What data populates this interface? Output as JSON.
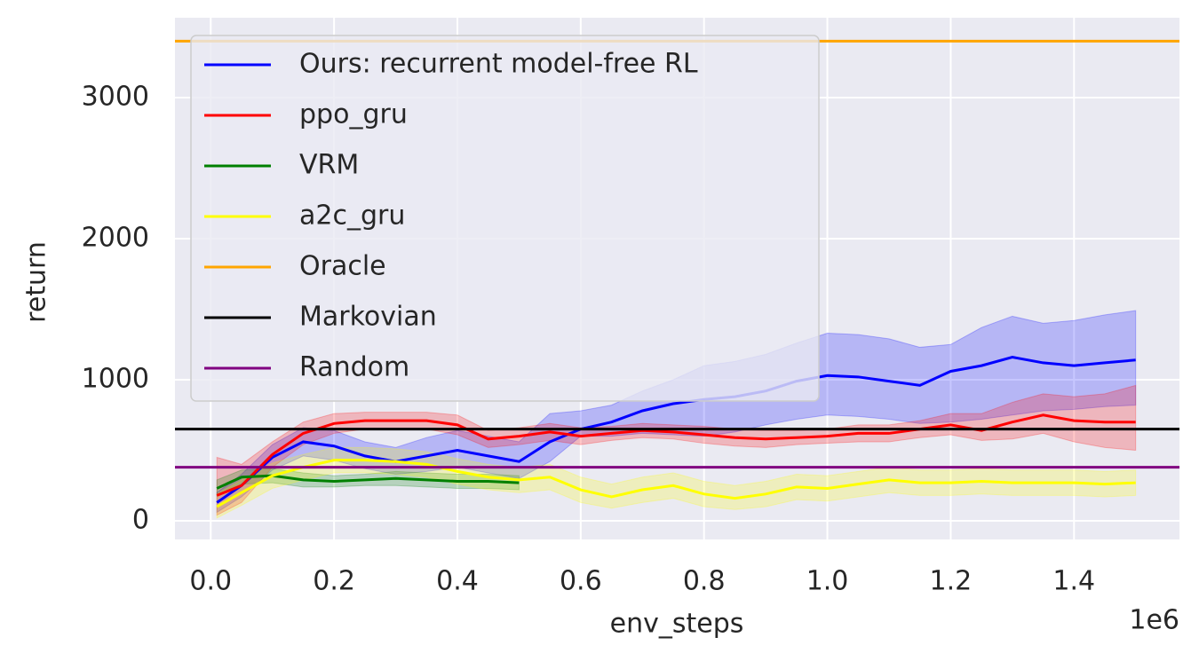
{
  "chart_data": {
    "type": "line",
    "x_label": "env_steps",
    "y_label": "return",
    "x_scale_label": "1e6",
    "xlim": [
      -0.058,
      1.571
    ],
    "ylim": [
      -132,
      3566
    ],
    "xticks": [
      {
        "value": 0,
        "label": "0.0"
      },
      {
        "value": 0.2,
        "label": "0.2"
      },
      {
        "value": 0.4,
        "label": "0.4"
      },
      {
        "value": 0.6,
        "label": "0.6"
      },
      {
        "value": 0.8,
        "label": "0.8"
      },
      {
        "value": 1,
        "label": "1.0"
      },
      {
        "value": 1.2,
        "label": "1.2"
      },
      {
        "value": 1.4,
        "label": "1.4"
      }
    ],
    "yticks": [
      0,
      1000,
      2000,
      3000
    ],
    "grid": true,
    "legend": "upper left",
    "series": [
      {
        "name": "Ours: recurrent model-free RL",
        "color": "#0000ff",
        "x": [
          0.01,
          0.05,
          0.1,
          0.15,
          0.2,
          0.25,
          0.3,
          0.35,
          0.4,
          0.45,
          0.5,
          0.55,
          0.6,
          0.65,
          0.7,
          0.75,
          0.8,
          0.85,
          0.9,
          0.95,
          1.0,
          1.05,
          1.1,
          1.15,
          1.2,
          1.25,
          1.3,
          1.35,
          1.4,
          1.45,
          1.5
        ],
        "values": [
          130,
          250,
          450,
          560,
          530,
          460,
          420,
          460,
          500,
          460,
          420,
          560,
          650,
          700,
          780,
          830,
          860,
          880,
          920,
          990,
          1030,
          1020,
          990,
          960,
          1060,
          1100,
          1160,
          1120,
          1100,
          1120,
          1140
        ],
        "lower": [
          60,
          170,
          360,
          460,
          430,
          370,
          330,
          350,
          380,
          340,
          300,
          420,
          600,
          600,
          620,
          610,
          600,
          630,
          680,
          720,
          750,
          740,
          720,
          690,
          700,
          720,
          750,
          780,
          790,
          810,
          820
        ],
        "upper": [
          200,
          330,
          540,
          660,
          640,
          560,
          520,
          590,
          640,
          600,
          560,
          760,
          780,
          820,
          920,
          1000,
          1100,
          1130,
          1180,
          1260,
          1330,
          1320,
          1290,
          1230,
          1250,
          1370,
          1450,
          1400,
          1420,
          1460,
          1490
        ]
      },
      {
        "name": "ppo_gru",
        "color": "#ff0000",
        "x": [
          0.01,
          0.05,
          0.1,
          0.15,
          0.2,
          0.25,
          0.3,
          0.35,
          0.4,
          0.45,
          0.5,
          0.55,
          0.6,
          0.65,
          0.7,
          0.75,
          0.8,
          0.85,
          0.9,
          0.95,
          1.0,
          1.05,
          1.1,
          1.15,
          1.2,
          1.25,
          1.3,
          1.35,
          1.4,
          1.45,
          1.5
        ],
        "values": [
          180,
          250,
          470,
          620,
          690,
          710,
          710,
          710,
          680,
          580,
          600,
          630,
          600,
          620,
          640,
          630,
          610,
          590,
          580,
          590,
          600,
          620,
          620,
          650,
          680,
          640,
          700,
          750,
          710,
          700,
          700
        ],
        "lower": [
          40,
          130,
          380,
          540,
          620,
          650,
          650,
          650,
          610,
          520,
          540,
          570,
          540,
          570,
          590,
          580,
          550,
          530,
          520,
          540,
          550,
          560,
          560,
          590,
          610,
          570,
          580,
          620,
          560,
          520,
          500
        ],
        "upper": [
          450,
          400,
          560,
          700,
          760,
          770,
          770,
          770,
          750,
          640,
          660,
          690,
          660,
          670,
          690,
          680,
          670,
          650,
          640,
          640,
          650,
          680,
          680,
          710,
          760,
          760,
          840,
          900,
          880,
          900,
          960
        ]
      },
      {
        "name": "VRM",
        "color": "#008000",
        "x": [
          0.01,
          0.05,
          0.1,
          0.15,
          0.2,
          0.25,
          0.3,
          0.35,
          0.4,
          0.45,
          0.5
        ],
        "values": [
          230,
          310,
          320,
          290,
          280,
          290,
          300,
          290,
          280,
          280,
          270
        ],
        "lower": [
          180,
          260,
          270,
          240,
          240,
          250,
          250,
          240,
          230,
          230,
          220
        ],
        "upper": [
          290,
          360,
          370,
          340,
          320,
          330,
          350,
          340,
          330,
          330,
          320
        ]
      },
      {
        "name": "a2c_gru",
        "color": "#ffff00",
        "x": [
          0.01,
          0.05,
          0.1,
          0.15,
          0.2,
          0.25,
          0.3,
          0.35,
          0.4,
          0.45,
          0.5,
          0.55,
          0.6,
          0.65,
          0.7,
          0.75,
          0.8,
          0.85,
          0.9,
          0.95,
          1.0,
          1.05,
          1.1,
          1.15,
          1.2,
          1.25,
          1.3,
          1.35,
          1.4,
          1.45,
          1.5
        ],
        "values": [
          100,
          200,
          320,
          380,
          430,
          430,
          420,
          400,
          350,
          310,
          290,
          310,
          220,
          170,
          220,
          250,
          190,
          160,
          190,
          240,
          230,
          260,
          290,
          270,
          270,
          280,
          270,
          270,
          270,
          260,
          270
        ],
        "lower": [
          20,
          110,
          230,
          290,
          340,
          340,
          330,
          310,
          260,
          220,
          200,
          220,
          130,
          90,
          130,
          160,
          100,
          80,
          100,
          150,
          140,
          170,
          200,
          180,
          180,
          190,
          180,
          180,
          180,
          170,
          180
        ],
        "upper": [
          190,
          290,
          410,
          470,
          520,
          520,
          510,
          490,
          440,
          400,
          380,
          400,
          310,
          260,
          310,
          340,
          280,
          250,
          280,
          330,
          320,
          350,
          380,
          360,
          360,
          370,
          360,
          360,
          360,
          350,
          360
        ]
      }
    ],
    "reference_lines": [
      {
        "name": "Oracle",
        "color": "#ffa500",
        "value": 3400
      },
      {
        "name": "Markovian",
        "color": "#000000",
        "value": 650
      },
      {
        "name": "Random",
        "color": "#800080",
        "value": 380
      }
    ]
  }
}
